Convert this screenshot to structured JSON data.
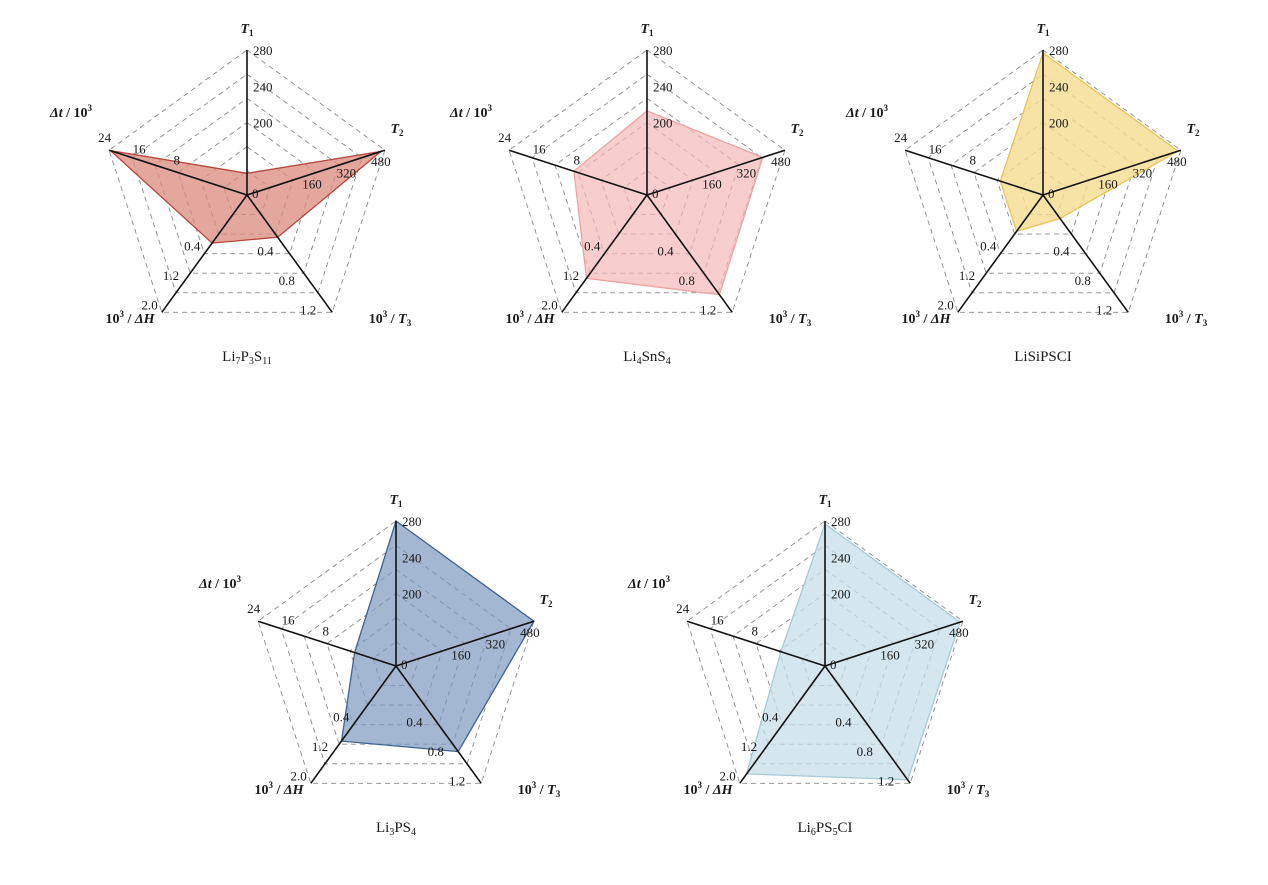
{
  "chart_data": [
    {
      "type": "radar",
      "caption": {
        "parts": [
          {
            "t": "Li",
            "s": false
          },
          {
            "t": "7",
            "s": true
          },
          {
            "t": "P",
            "s": false
          },
          {
            "t": "3",
            "s": true
          },
          {
            "t": "S",
            "s": false
          },
          {
            "t": "11",
            "s": true
          }
        ]
      },
      "fill_color": "#d9897e",
      "stroke_color": "#b5473d",
      "fill_opacity": 0.75,
      "values": [
        0.15,
        0.97,
        0.36,
        0.41,
        0.99
      ]
    },
    {
      "type": "radar",
      "caption": {
        "parts": [
          {
            "t": "Li",
            "s": false
          },
          {
            "t": "4",
            "s": true
          },
          {
            "t": "SnS",
            "s": false
          },
          {
            "t": "4",
            "s": true
          }
        ]
      },
      "fill_color": "#f4b8b8",
      "stroke_color": "#eda3a3",
      "fill_opacity": 0.7,
      "values": [
        0.58,
        0.84,
        0.85,
        0.71,
        0.53
      ]
    },
    {
      "type": "radar",
      "caption": {
        "parts": [
          {
            "t": "LiSiPSCI",
            "s": false
          }
        ]
      },
      "fill_color": "#f6dc91",
      "stroke_color": "#e9c45c",
      "fill_opacity": 0.8,
      "values": [
        0.98,
        0.98,
        0.2,
        0.31,
        0.31
      ]
    },
    {
      "type": "radar",
      "caption": {
        "parts": [
          {
            "t": "Li",
            "s": false
          },
          {
            "t": "3",
            "s": true
          },
          {
            "t": "PS",
            "s": false
          },
          {
            "t": "4",
            "s": true
          }
        ]
      },
      "fill_color": "#7e98bf",
      "stroke_color": "#3f6290",
      "fill_opacity": 0.7,
      "values": [
        1.0,
        1.0,
        0.73,
        0.64,
        0.3
      ]
    },
    {
      "type": "radar",
      "caption": {
        "parts": [
          {
            "t": "Li",
            "s": false
          },
          {
            "t": "6",
            "s": true
          },
          {
            "t": "PS",
            "s": false
          },
          {
            "t": "5",
            "s": true
          },
          {
            "t": "CI",
            "s": false
          }
        ]
      },
      "fill_color": "#c5dfe8",
      "stroke_color": "#a8cad8",
      "fill_opacity": 0.75,
      "values": [
        0.98,
        0.98,
        0.97,
        0.92,
        0.32
      ]
    }
  ],
  "axes": [
    {
      "label": [
        {
          "t": "T",
          "s": false
        },
        {
          "t": "1",
          "s": true
        }
      ],
      "ticks": [
        "200",
        "240",
        "280"
      ]
    },
    {
      "label": [
        {
          "t": "T",
          "s": false
        },
        {
          "t": "2",
          "s": true
        }
      ],
      "ticks": [
        "160",
        "320",
        "480"
      ]
    },
    {
      "label": [
        {
          "t": "10",
          "s": false,
          "sup": true
        },
        {
          "t": "3",
          "s": true,
          "sup": true
        },
        {
          "t": " / ",
          "s": false
        },
        {
          "t": "T",
          "s": false
        },
        {
          "t": "3",
          "s": true
        }
      ],
      "ticks": [
        "0.4",
        "0.8",
        "1.2"
      ]
    },
    {
      "label": [
        {
          "t": "10",
          "s": false
        },
        {
          "t": "3",
          "s": true,
          "sup": true
        },
        {
          "t": " / ",
          "s": false
        },
        {
          "t": "ΔH",
          "s": false
        }
      ],
      "ticks": [
        "0.4",
        "1.2",
        "2.0"
      ]
    },
    {
      "label": [
        {
          "t": "Δt",
          "s": false
        },
        {
          "t": " / 10",
          "s": false
        },
        {
          "t": "3",
          "s": true,
          "sup": true
        }
      ],
      "ticks": [
        "8",
        "16",
        "24"
      ]
    }
  ],
  "origin_tick": "0"
}
